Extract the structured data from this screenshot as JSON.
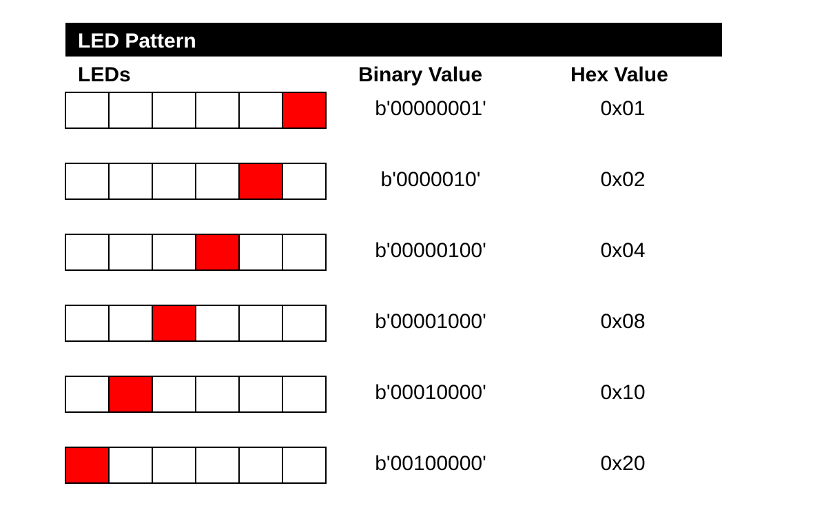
{
  "title": "LED Pattern",
  "headers": {
    "leds": "LEDs",
    "binary": "Binary Value",
    "hex": "Hex Value"
  },
  "colors": {
    "led_on": "#ff0000",
    "led_off": "#ffffff",
    "title_bar": "#000000"
  },
  "rows": [
    {
      "leds": [
        0,
        0,
        0,
        0,
        0,
        1
      ],
      "binary": "b'00000001'",
      "hex": "0x01"
    },
    {
      "leds": [
        0,
        0,
        0,
        0,
        1,
        0
      ],
      "binary": "b'0000010'",
      "hex": "0x02"
    },
    {
      "leds": [
        0,
        0,
        0,
        1,
        0,
        0
      ],
      "binary": "b'00000100'",
      "hex": "0x04"
    },
    {
      "leds": [
        0,
        0,
        1,
        0,
        0,
        0
      ],
      "binary": "b'00001000'",
      "hex": "0x08"
    },
    {
      "leds": [
        0,
        1,
        0,
        0,
        0,
        0
      ],
      "binary": "b'00010000'",
      "hex": "0x10"
    },
    {
      "leds": [
        1,
        0,
        0,
        0,
        0,
        0
      ],
      "binary": "b'00100000'",
      "hex": "0x20"
    }
  ]
}
